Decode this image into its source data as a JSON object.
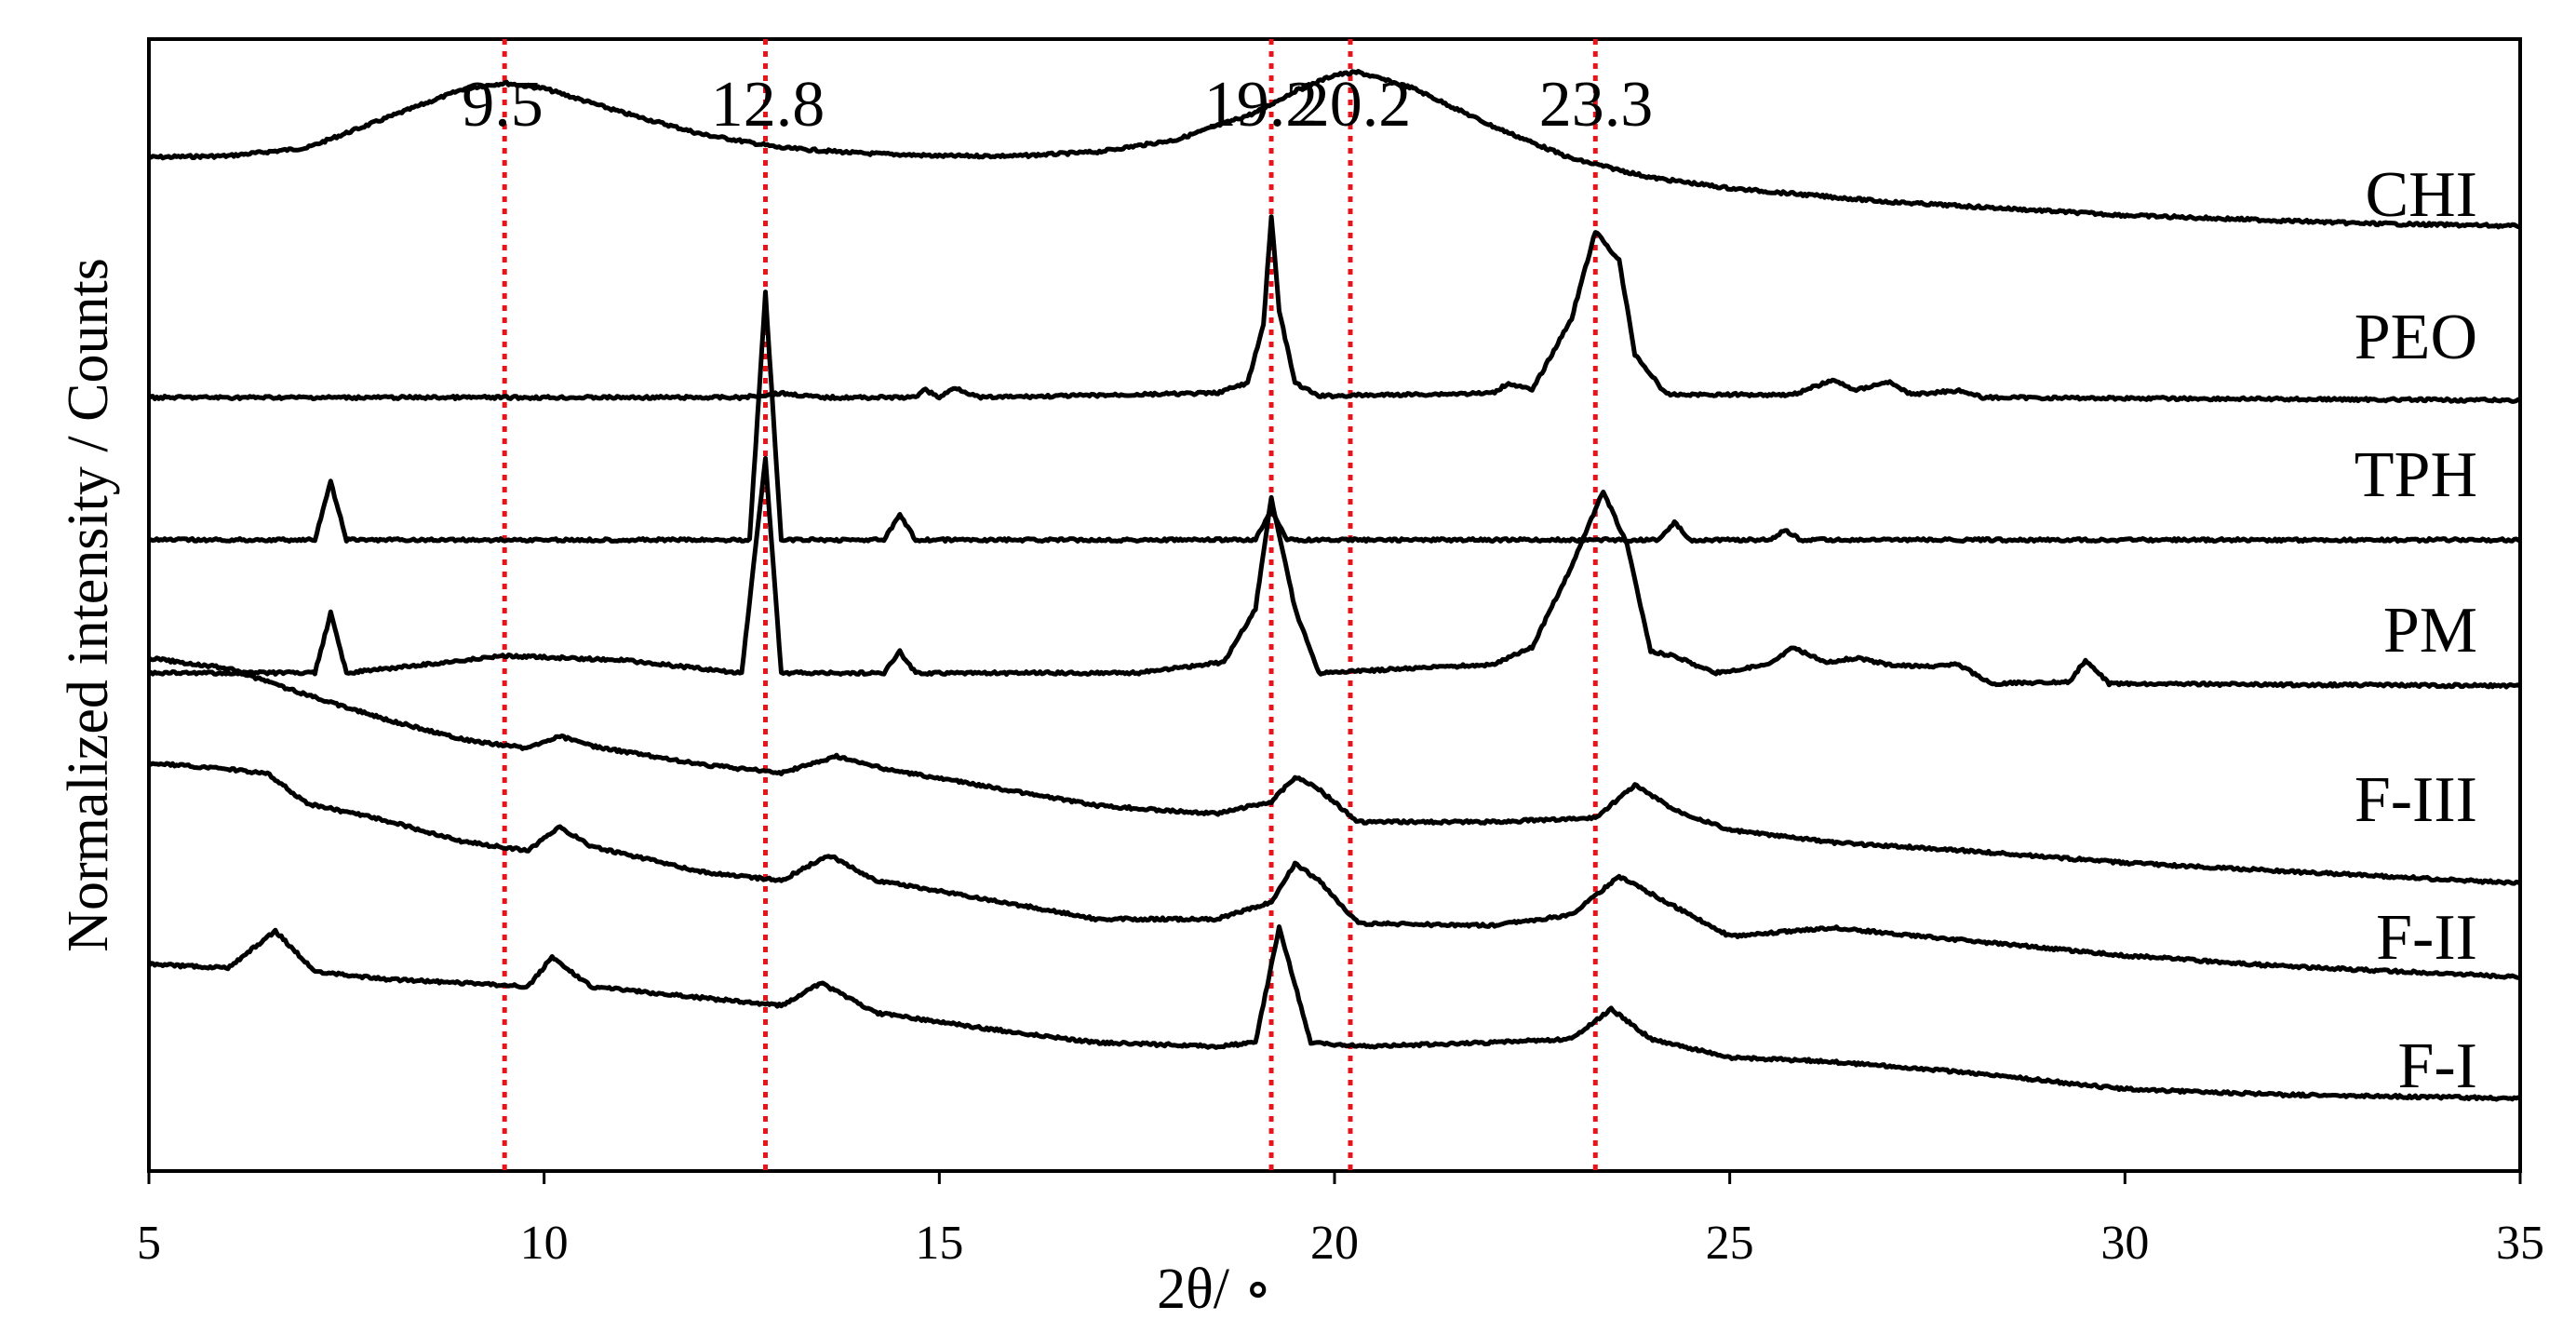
{
  "chart_data": {
    "type": "line",
    "xlabel": "2θ/ ∘",
    "ylabel": "Normalized intensity / Counts",
    "xlim": [
      5,
      35
    ],
    "xticks": [
      "5",
      "10",
      "15",
      "20",
      "25",
      "30",
      "35"
    ],
    "grid": false,
    "legend": "labels at right end of each trace",
    "line_color": "#000000",
    "reference_line_color": "#e8141b",
    "reference_lines": [
      {
        "x": 9.5,
        "label": "9.5"
      },
      {
        "x": 12.8,
        "label": "12.8"
      },
      {
        "x": 19.2,
        "label": "19.2"
      },
      {
        "x": 20.2,
        "label": "20.2"
      },
      {
        "x": 23.3,
        "label": "23.3"
      }
    ],
    "series": [
      {
        "name": "CHI",
        "baseline": 0.5,
        "points": [
          [
            5,
            0.49
          ],
          [
            6,
            0.5
          ],
          [
            7,
            0.56
          ],
          [
            8,
            0.78
          ],
          [
            9,
            1.0
          ],
          [
            9.5,
            1.04
          ],
          [
            10,
            1.0
          ],
          [
            11,
            0.82
          ],
          [
            12,
            0.66
          ],
          [
            13,
            0.56
          ],
          [
            14,
            0.52
          ],
          [
            15,
            0.5
          ],
          [
            16,
            0.5
          ],
          [
            17,
            0.53
          ],
          [
            18,
            0.62
          ],
          [
            19,
            0.82
          ],
          [
            19.5,
            0.98
          ],
          [
            20,
            1.1
          ],
          [
            20.3,
            1.12
          ],
          [
            21,
            1.0
          ],
          [
            22,
            0.72
          ],
          [
            23,
            0.48
          ],
          [
            24,
            0.34
          ],
          [
            25,
            0.26
          ],
          [
            27,
            0.16
          ],
          [
            30,
            0.06
          ],
          [
            33,
            0.0
          ],
          [
            35,
            -0.02
          ]
        ]
      },
      {
        "name": "PEO",
        "baseline": 0.0,
        "points": [
          [
            5,
            0.0
          ],
          [
            12.5,
            0.0
          ],
          [
            13,
            0.03
          ],
          [
            13.5,
            0.0
          ],
          [
            14.7,
            0.0
          ],
          [
            14.8,
            0.06
          ],
          [
            15,
            0.0
          ],
          [
            15.2,
            0.07
          ],
          [
            15.5,
            0.0
          ],
          [
            18.5,
            0.03
          ],
          [
            18.9,
            0.1
          ],
          [
            19.1,
            0.5
          ],
          [
            19.2,
            1.26
          ],
          [
            19.3,
            0.6
          ],
          [
            19.5,
            0.1
          ],
          [
            19.8,
            0.01
          ],
          [
            22,
            0.03
          ],
          [
            22.2,
            0.1
          ],
          [
            22.5,
            0.05
          ],
          [
            23,
            0.55
          ],
          [
            23.3,
            1.15
          ],
          [
            23.6,
            0.95
          ],
          [
            23.8,
            0.3
          ],
          [
            24.2,
            0.02
          ],
          [
            25.8,
            0.02
          ],
          [
            26.3,
            0.12
          ],
          [
            26.6,
            0.05
          ],
          [
            27.0,
            0.11
          ],
          [
            27.3,
            0.02
          ],
          [
            27.9,
            0.05
          ],
          [
            28.2,
            0.0
          ],
          [
            35,
            -0.02
          ]
        ]
      },
      {
        "name": "TPH",
        "baseline": 0.0,
        "points": [
          [
            5,
            0.0
          ],
          [
            7.1,
            0.0
          ],
          [
            7.3,
            0.3
          ],
          [
            7.5,
            0.0
          ],
          [
            12.6,
            0.0
          ],
          [
            12.8,
            1.28
          ],
          [
            13.0,
            0.0
          ],
          [
            14.3,
            0.0
          ],
          [
            14.5,
            0.13
          ],
          [
            14.7,
            0.0
          ],
          [
            19.0,
            0.0
          ],
          [
            19.2,
            0.16
          ],
          [
            19.4,
            0.0
          ],
          [
            24.1,
            0.0
          ],
          [
            24.3,
            0.09
          ],
          [
            24.5,
            0.0
          ],
          [
            25.5,
            0.0
          ],
          [
            25.7,
            0.05
          ],
          [
            25.9,
            0.0
          ],
          [
            35,
            0.0
          ]
        ]
      },
      {
        "name": "PM",
        "baseline": 0.0,
        "points": [
          [
            5,
            0.0
          ],
          [
            7.1,
            0.0
          ],
          [
            7.3,
            0.28
          ],
          [
            7.5,
            0.0
          ],
          [
            9.5,
            0.08
          ],
          [
            11,
            0.06
          ],
          [
            12.5,
            0.0
          ],
          [
            12.8,
            1.0
          ],
          [
            13.0,
            0.0
          ],
          [
            14.3,
            0.0
          ],
          [
            14.5,
            0.1
          ],
          [
            14.7,
            0.0
          ],
          [
            17.5,
            0.0
          ],
          [
            18.6,
            0.05
          ],
          [
            19.0,
            0.3
          ],
          [
            19.2,
            0.82
          ],
          [
            19.5,
            0.3
          ],
          [
            19.8,
            0.0
          ],
          [
            22,
            0.04
          ],
          [
            22.5,
            0.12
          ],
          [
            23.0,
            0.5
          ],
          [
            23.4,
            0.85
          ],
          [
            23.7,
            0.6
          ],
          [
            24.0,
            0.1
          ],
          [
            24.3,
            0.08
          ],
          [
            24.8,
            0.0
          ],
          [
            25.5,
            0.04
          ],
          [
            25.8,
            0.12
          ],
          [
            26.2,
            0.05
          ],
          [
            26.6,
            0.07
          ],
          [
            27.0,
            0.04
          ],
          [
            27.5,
            0.03
          ],
          [
            27.9,
            0.04
          ],
          [
            28.3,
            -0.05
          ],
          [
            29.3,
            -0.04
          ],
          [
            29.5,
            0.06
          ],
          [
            29.8,
            -0.05
          ],
          [
            35,
            -0.06
          ]
        ]
      },
      {
        "name": "F-III",
        "baseline": 0.0,
        "points": [
          [
            5,
            0.9
          ],
          [
            6,
            0.85
          ],
          [
            7,
            0.72
          ],
          [
            8,
            0.6
          ],
          [
            9,
            0.5
          ],
          [
            9.8,
            0.46
          ],
          [
            10.2,
            0.52
          ],
          [
            10.6,
            0.47
          ],
          [
            12,
            0.38
          ],
          [
            13,
            0.34
          ],
          [
            13.7,
            0.42
          ],
          [
            14.3,
            0.36
          ],
          [
            15.5,
            0.28
          ],
          [
            17,
            0.18
          ],
          [
            18.5,
            0.14
          ],
          [
            19.2,
            0.2
          ],
          [
            19.5,
            0.32
          ],
          [
            19.8,
            0.26
          ],
          [
            20.3,
            0.1
          ],
          [
            22,
            0.1
          ],
          [
            23.3,
            0.12
          ],
          [
            23.8,
            0.28
          ],
          [
            24.3,
            0.16
          ],
          [
            25,
            0.06
          ],
          [
            26.3,
            0.0
          ],
          [
            28,
            -0.04
          ],
          [
            30,
            -0.1
          ],
          [
            32,
            -0.14
          ],
          [
            35,
            -0.2
          ]
        ]
      },
      {
        "name": "F-II",
        "baseline": 0.0,
        "points": [
          [
            5,
            0.85
          ],
          [
            6,
            0.82
          ],
          [
            6.5,
            0.8
          ],
          [
            7,
            0.66
          ],
          [
            8,
            0.58
          ],
          [
            9,
            0.48
          ],
          [
            9.8,
            0.44
          ],
          [
            10.2,
            0.55
          ],
          [
            10.6,
            0.46
          ],
          [
            12,
            0.34
          ],
          [
            13,
            0.3
          ],
          [
            13.6,
            0.42
          ],
          [
            14.2,
            0.3
          ],
          [
            15.5,
            0.22
          ],
          [
            17,
            0.12
          ],
          [
            18.5,
            0.12
          ],
          [
            19.2,
            0.2
          ],
          [
            19.5,
            0.38
          ],
          [
            19.8,
            0.3
          ],
          [
            20.3,
            0.1
          ],
          [
            22,
            0.09
          ],
          [
            23.0,
            0.14
          ],
          [
            23.6,
            0.32
          ],
          [
            24.2,
            0.2
          ],
          [
            25,
            0.04
          ],
          [
            26.3,
            0.08
          ],
          [
            28,
            0.02
          ],
          [
            30,
            -0.05
          ],
          [
            32,
            -0.1
          ],
          [
            35,
            -0.15
          ]
        ]
      },
      {
        "name": "F-I",
        "baseline": 0.0,
        "points": [
          [
            5,
            0.62
          ],
          [
            6,
            0.6
          ],
          [
            6.6,
            0.8
          ],
          [
            7.1,
            0.58
          ],
          [
            8,
            0.54
          ],
          [
            9,
            0.52
          ],
          [
            9.8,
            0.5
          ],
          [
            10.1,
            0.66
          ],
          [
            10.6,
            0.5
          ],
          [
            12,
            0.44
          ],
          [
            13,
            0.4
          ],
          [
            13.5,
            0.52
          ],
          [
            14.2,
            0.36
          ],
          [
            15.5,
            0.28
          ],
          [
            17,
            0.2
          ],
          [
            18.5,
            0.18
          ],
          [
            19.0,
            0.2
          ],
          [
            19.3,
            0.82
          ],
          [
            19.7,
            0.2
          ],
          [
            20.3,
            0.18
          ],
          [
            22,
            0.2
          ],
          [
            23.0,
            0.22
          ],
          [
            23.5,
            0.38
          ],
          [
            24.0,
            0.22
          ],
          [
            25,
            0.12
          ],
          [
            26.2,
            0.1
          ],
          [
            28,
            0.04
          ],
          [
            30,
            -0.05
          ],
          [
            32,
            -0.08
          ],
          [
            35,
            -0.1
          ]
        ]
      }
    ]
  }
}
